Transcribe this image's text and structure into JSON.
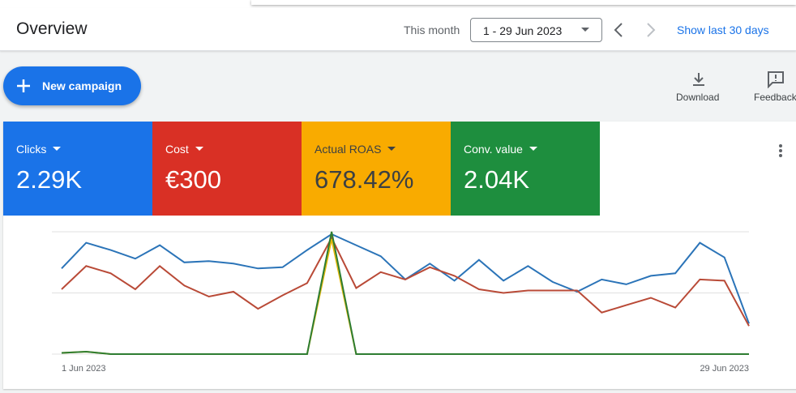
{
  "header": {
    "title": "Overview",
    "range_label": "This month",
    "date_range": "1 - 29 Jun 2023",
    "show_last": "Show last 30 days"
  },
  "toolbar": {
    "new_campaign": "New campaign",
    "download": "Download",
    "feedback": "Feedback"
  },
  "metrics": [
    {
      "label": "Clicks",
      "value": "2.29K",
      "color": "#1a73e8",
      "text_color": "#ffffff"
    },
    {
      "label": "Cost",
      "value": "€300",
      "color": "#d93025",
      "text_color": "#ffffff"
    },
    {
      "label": "Actual ROAS",
      "value": "678.42%",
      "color": "#f9ab00",
      "text_color": "#3c4043"
    },
    {
      "label": "Conv. value",
      "value": "2.04K",
      "color": "#1e8e3e",
      "text_color": "#ffffff"
    }
  ],
  "chart_data": {
    "type": "line",
    "categories": [
      "1 Jun 2023",
      null,
      null,
      null,
      null,
      null,
      null,
      null,
      null,
      null,
      null,
      null,
      null,
      null,
      null,
      null,
      null,
      null,
      null,
      null,
      null,
      null,
      null,
      null,
      null,
      null,
      null,
      null,
      "29 Jun 2023"
    ],
    "ylim": [
      0,
      100
    ],
    "series": [
      {
        "name": "Clicks",
        "color": "#2b74b8",
        "values": [
          70,
          91,
          85,
          78,
          89,
          75,
          76,
          74,
          70,
          71,
          85,
          98,
          89,
          80,
          61,
          74,
          60,
          77,
          60,
          72,
          59,
          51,
          61,
          57,
          64,
          66,
          91,
          79,
          25
        ]
      },
      {
        "name": "Cost",
        "color": "#b94a37",
        "values": [
          53,
          72,
          66,
          53,
          72,
          56,
          47,
          51,
          37,
          48,
          58,
          95,
          54,
          67,
          61,
          71,
          64,
          53,
          50,
          52,
          52,
          52,
          34,
          40,
          46,
          38,
          61,
          60,
          23
        ]
      },
      {
        "name": "Actual ROAS",
        "color": "#e5b80b",
        "values": [
          1,
          2,
          0,
          0,
          0,
          0,
          0,
          0,
          0,
          0,
          0,
          94,
          0,
          0,
          0,
          0,
          0,
          0,
          0,
          0,
          0,
          0,
          0,
          0,
          0,
          0,
          0,
          0,
          0
        ]
      },
      {
        "name": "Conv. value",
        "color": "#2e7d32",
        "values": [
          1,
          2,
          0,
          0,
          0,
          0,
          0,
          0,
          0,
          0,
          0,
          100,
          0,
          0,
          0,
          0,
          0,
          0,
          0,
          0,
          0,
          0,
          0,
          0,
          0,
          0,
          0,
          0,
          0
        ]
      }
    ]
  }
}
